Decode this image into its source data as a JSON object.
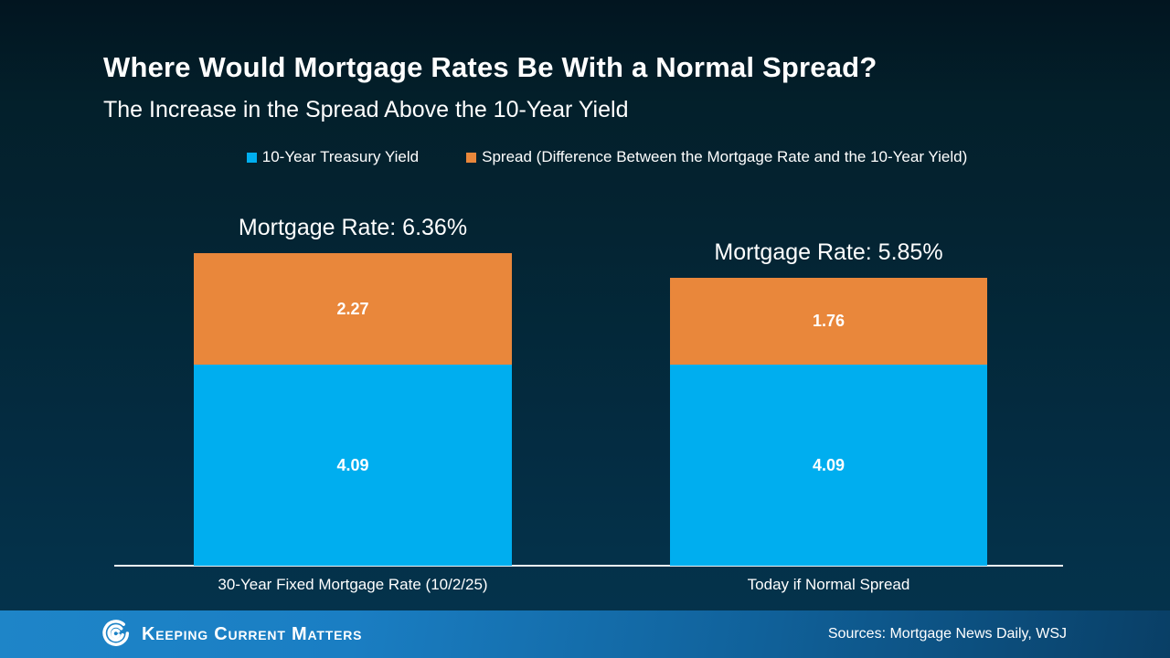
{
  "title": "Where Would Mortgage Rates Be With a Normal Spread?",
  "subtitle": "The Increase in the Spread Above the 10-Year Yield",
  "legend": [
    {
      "label": "10-Year Treasury Yield",
      "color": "#00AEEF"
    },
    {
      "label": "Spread (Difference Between the Mortgage Rate and the 10-Year Yield)",
      "color": "#E9873B"
    }
  ],
  "chart_data": {
    "type": "bar",
    "stacked": true,
    "categories": [
      "30-Year Fixed Mortgage Rate (10/2/25)",
      "Today if Normal Spread"
    ],
    "series": [
      {
        "name": "10-Year Treasury Yield",
        "color": "#00AEEF",
        "values": [
          4.09,
          4.09
        ]
      },
      {
        "name": "Spread (Difference Between the Mortgage Rate and the 10-Year Yield)",
        "color": "#E9873B",
        "values": [
          2.27,
          1.76
        ]
      }
    ],
    "totals": [
      6.36,
      5.85
    ],
    "totals_labels": [
      "Mortgage Rate: 6.36%",
      "Mortgage Rate: 5.85%"
    ],
    "ylim": [
      0,
      6.36
    ],
    "grid": false,
    "legend_position": "top",
    "value_labels": "centered-in-segment"
  },
  "footer": {
    "brand": "Keeping Current Matters",
    "sources": "Sources: Mortgage News Daily, WSJ",
    "bar_color_left": "#1E85C8",
    "bar_color_right": "#093F66"
  },
  "colors": {
    "background_top": "#021520",
    "background_bottom": "#05334D",
    "treasury_blue": "#00AEEF",
    "spread_orange": "#E9873B",
    "axis_line": "#EEF2F4",
    "text": "#FFFFFF"
  }
}
